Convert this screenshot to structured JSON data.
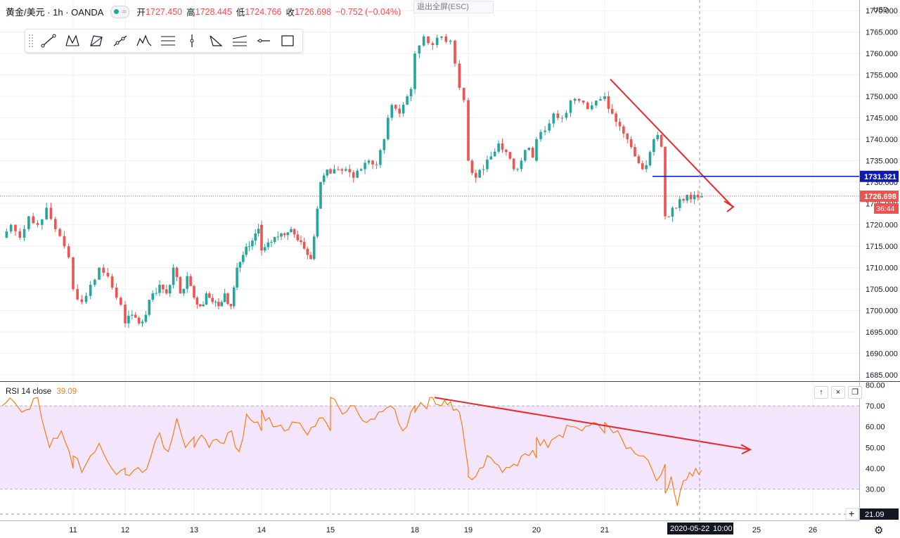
{
  "header": {
    "symbol": "黄金/美元 · 1h · OANDA",
    "open_label": "开",
    "open_value": "1727.450",
    "high_label": "高",
    "high_value": "1728.445",
    "low_label": "低",
    "low_value": "1724.766",
    "close_label": "收",
    "close_value": "1726.698",
    "change_value": "−0.752 (−0.04%)"
  },
  "exit_fullscreen": "退出全屏(ESC)",
  "toolbar": {
    "tools": [
      "trend-line",
      "xabcd-pattern",
      "head-shoulders",
      "path",
      "elliott-wave",
      "parallel-channel",
      "vertical-line",
      "triangle",
      "pitchfork",
      "horizontal-ray",
      "rectangle"
    ]
  },
  "price_axis": {
    "currency": "USD",
    "labels": [
      "1770.000",
      "1765.000",
      "1760.000",
      "1755.000",
      "1750.000",
      "1745.000",
      "1740.000",
      "1735.000",
      "1730.000",
      "1725.000",
      "1720.000",
      "1715.000",
      "1710.000",
      "1705.000",
      "1700.000",
      "1695.000",
      "1690.000",
      "1685.000"
    ]
  },
  "markers": {
    "blue_level": "1731.321",
    "last_price": "1726.698",
    "countdown": "36:44"
  },
  "rsi": {
    "title": "RSI 14 close",
    "value": "39.09",
    "axis_labels": [
      "80.00",
      "70.00",
      "60.00",
      "50.00",
      "40.00",
      "30.00"
    ],
    "crosshair_value": "21.09",
    "buttons": [
      "↑",
      "×",
      "❐"
    ]
  },
  "time_axis": {
    "labels": [
      "11",
      "12",
      "13",
      "14",
      "15",
      "18",
      "19",
      "20",
      "21",
      "25",
      "26"
    ],
    "crosshair_date": "2020-05-22",
    "crosshair_time": "10:00"
  },
  "colors": {
    "up": "#26a69a",
    "down": "#ef5350",
    "rsi_line": "#f57f17",
    "rsi_band": "#f3e5fc",
    "blue_line": "#0d1ab8",
    "trend": "#e8282d"
  },
  "chart_data": {
    "type": "candlestick",
    "title": "黄金/美元, 1h, OANDA",
    "ylim": [
      1685,
      1772
    ],
    "xlabel": "",
    "ylabel": "",
    "anchors": [
      [
        "10",
        1717
      ],
      [
        "10",
        1720
      ],
      [
        "10",
        1717
      ],
      [
        "10",
        1722
      ],
      [
        "10",
        1720
      ],
      [
        "10",
        1724
      ],
      [
        "10",
        1719
      ],
      [
        "10",
        1715
      ],
      [
        "10",
        1711
      ],
      [
        "11",
        1705
      ],
      [
        "11",
        1702
      ],
      [
        "11",
        1706
      ],
      [
        "11",
        1710
      ],
      [
        "11",
        1708
      ],
      [
        "11",
        1703
      ],
      [
        "11",
        1700
      ],
      [
        "12",
        1697
      ],
      [
        "12",
        1699
      ],
      [
        "12",
        1697
      ],
      [
        "12",
        1699
      ],
      [
        "12",
        1704
      ],
      [
        "12",
        1706
      ],
      [
        "12",
        1704
      ],
      [
        "12",
        1710
      ],
      [
        "12",
        1704
      ],
      [
        "12",
        1708
      ],
      [
        "12",
        1705
      ],
      [
        "13",
        1703
      ],
      [
        "13",
        1701
      ],
      [
        "13",
        1704
      ],
      [
        "13",
        1702
      ],
      [
        "13",
        1701
      ],
      [
        "13",
        1704
      ],
      [
        "13",
        1701
      ],
      [
        "13",
        1710
      ],
      [
        "13",
        1713
      ],
      [
        "13",
        1715
      ],
      [
        "13",
        1718
      ],
      [
        "13",
        1720
      ],
      [
        "14",
        1714
      ],
      [
        "14",
        1716
      ],
      [
        "14",
        1718
      ],
      [
        "14",
        1719
      ],
      [
        "14",
        1716
      ],
      [
        "14",
        1712
      ],
      [
        "14",
        1730
      ],
      [
        "14",
        1733
      ],
      [
        "15",
        1732
      ],
      [
        "15",
        1733
      ],
      [
        "15",
        1733
      ],
      [
        "15",
        1731
      ],
      [
        "15",
        1733
      ],
      [
        "15",
        1735
      ],
      [
        "15",
        1734
      ],
      [
        "15",
        1740
      ],
      [
        "15",
        1748
      ],
      [
        "15",
        1746
      ],
      [
        "15",
        1750
      ],
      [
        "15",
        1755
      ],
      [
        "18",
        1760
      ],
      [
        "18",
        1764
      ],
      [
        "18",
        1762
      ],
      [
        "18",
        1764
      ],
      [
        "18",
        1763
      ],
      [
        "18",
        1752
      ],
      [
        "18",
        1748
      ],
      [
        "19",
        1735
      ],
      [
        "19",
        1731
      ],
      [
        "19",
        1733
      ],
      [
        "19",
        1736
      ],
      [
        "19",
        1739
      ],
      [
        "19",
        1737
      ],
      [
        "19",
        1733
      ],
      [
        "19",
        1735
      ],
      [
        "19",
        1738
      ],
      [
        "19",
        1735
      ],
      [
        "20",
        1740
      ],
      [
        "20",
        1742
      ],
      [
        "20",
        1746
      ],
      [
        "20",
        1745
      ],
      [
        "20",
        1749
      ],
      [
        "20",
        1749
      ],
      [
        "20",
        1747
      ],
      [
        "20",
        1749
      ],
      [
        "20",
        1750
      ],
      [
        "21",
        1750
      ],
      [
        "21",
        1746
      ],
      [
        "21",
        1743
      ],
      [
        "21",
        1740
      ],
      [
        "21",
        1736
      ],
      [
        "21",
        1733
      ],
      [
        "21",
        1737
      ],
      [
        "21",
        1741
      ],
      [
        "21",
        1734
      ],
      [
        "22",
        1722
      ],
      [
        "22",
        1724
      ],
      [
        "22",
        1726
      ],
      [
        "22",
        1727
      ],
      [
        "22",
        1727
      ],
      [
        "22",
        1726.698
      ]
    ],
    "trend_lines": [
      {
        "from": [
          "21",
          1754
        ],
        "to": [
          "22",
          1729.5
        ]
      },
      {
        "horizontal": 1731.321
      }
    ],
    "rsi": {
      "name": "RSI 14 close",
      "ylim": [
        20,
        80
      ],
      "band": [
        30,
        70
      ],
      "anchors": [
        [
          "10",
          70
        ],
        [
          "10",
          72
        ],
        [
          "10",
          68
        ],
        [
          "10",
          74
        ],
        [
          "10",
          50
        ],
        [
          "10",
          58
        ],
        [
          "10",
          40
        ],
        [
          "11",
          46
        ],
        [
          "11",
          38
        ],
        [
          "11",
          46
        ],
        [
          "11",
          52
        ],
        [
          "11",
          43
        ],
        [
          "11",
          37
        ],
        [
          "11",
          40
        ],
        [
          "12",
          37
        ],
        [
          "12",
          39
        ],
        [
          "12",
          38
        ],
        [
          "12",
          46
        ],
        [
          "12",
          57
        ],
        [
          "12",
          48
        ],
        [
          "12",
          64
        ],
        [
          "12",
          50
        ],
        [
          "12",
          55
        ],
        [
          "13",
          50
        ],
        [
          "13",
          56
        ],
        [
          "13",
          50
        ],
        [
          "13",
          54
        ],
        [
          "13",
          52
        ],
        [
          "13",
          58
        ],
        [
          "13",
          48
        ],
        [
          "13",
          66
        ],
        [
          "13",
          62
        ],
        [
          "13",
          58
        ],
        [
          "14",
          68
        ],
        [
          "14",
          60
        ],
        [
          "14",
          58
        ],
        [
          "14",
          62
        ],
        [
          "14",
          56
        ],
        [
          "14",
          64
        ],
        [
          "14",
          58
        ],
        [
          "15",
          74
        ],
        [
          "15",
          66
        ],
        [
          "15",
          70
        ],
        [
          "15",
          62
        ],
        [
          "15",
          67
        ],
        [
          "15",
          70
        ],
        [
          "15",
          58
        ],
        [
          "15",
          70
        ],
        [
          "18",
          67
        ],
        [
          "18",
          70
        ],
        [
          "18",
          74
        ],
        [
          "18",
          70
        ],
        [
          "18",
          72
        ],
        [
          "18",
          67
        ],
        [
          "18",
          40
        ],
        [
          "19",
          36
        ],
        [
          "19",
          40
        ],
        [
          "19",
          45
        ],
        [
          "19",
          38
        ],
        [
          "19",
          42
        ],
        [
          "19",
          47
        ],
        [
          "19",
          45
        ],
        [
          "20",
          55
        ],
        [
          "20",
          50
        ],
        [
          "20",
          56
        ],
        [
          "20",
          60
        ],
        [
          "20",
          58
        ],
        [
          "20",
          62
        ],
        [
          "20",
          57
        ],
        [
          "21",
          62
        ],
        [
          "21",
          57
        ],
        [
          "21",
          54
        ],
        [
          "21",
          50
        ],
        [
          "21",
          46
        ],
        [
          "21",
          44
        ],
        [
          "21",
          34
        ],
        [
          "21",
          42
        ],
        [
          "22",
          28
        ],
        [
          "22",
          36
        ],
        [
          "22",
          22
        ],
        [
          "22",
          34
        ],
        [
          "22",
          38
        ],
        [
          "22",
          40
        ],
        [
          "22",
          39.09
        ]
      ],
      "trend_line": {
        "from": [
          "18",
          74
        ],
        "to": [
          "22",
          49
        ]
      }
    }
  }
}
